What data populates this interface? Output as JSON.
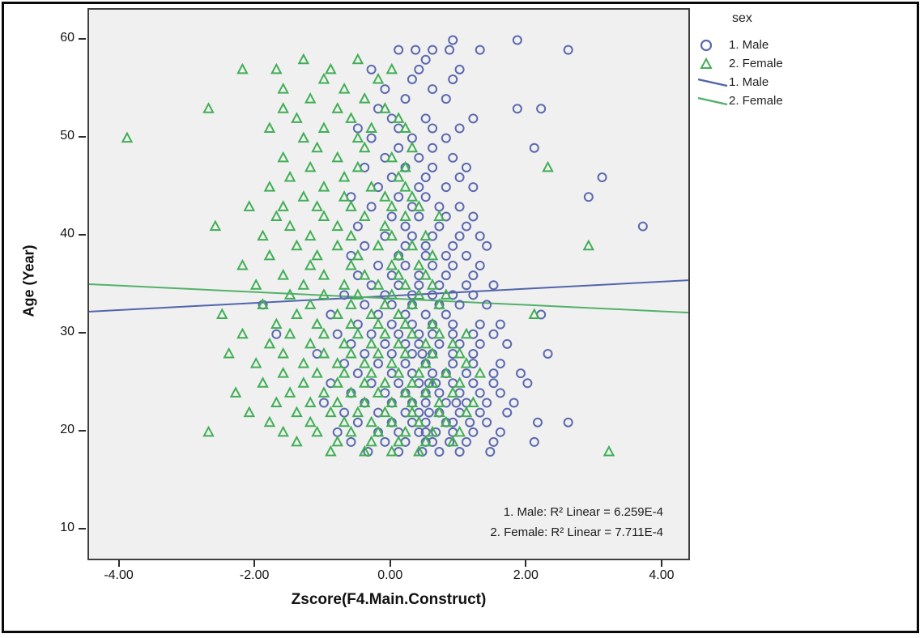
{
  "figure": {
    "x_title": "Zscore(F4.Main.Construct)",
    "y_title": "Age (Year)"
  },
  "legend": {
    "title": "sex",
    "entries": [
      {
        "label": "1. Male",
        "marker": "circle"
      },
      {
        "label": "2. Female",
        "marker": "triangle"
      },
      {
        "label": "1. Male",
        "marker": "line-male"
      },
      {
        "label": "2. Female",
        "marker": "line-female"
      }
    ]
  },
  "annotation": {
    "line1": "1. Male: R² Linear = 6.259E-4",
    "line2": "2. Female: R² Linear = 7.711E-4"
  },
  "colors": {
    "male": "#5b68ae",
    "female": "#41ae55",
    "male_line": "#5265ab",
    "female_line": "#53b168",
    "plot_bg": "#f0f0f1",
    "plot_border": "#3f3f3f",
    "text": "#151515"
  },
  "chart_data": {
    "type": "scatter",
    "title": "",
    "xlabel": "Zscore(F4.Main.Construct)",
    "ylabel": "Age (Year)",
    "xlim": [
      -4.46,
      4.37
    ],
    "ylim": [
      7.1,
      63.1
    ],
    "xticks": [
      -4,
      -2,
      0,
      2,
      4
    ],
    "xtick_labels": [
      "-4.00",
      "-2.00",
      "0.00",
      "2.00",
      "4.00"
    ],
    "yticks": [
      10,
      20,
      30,
      40,
      50,
      60
    ],
    "ytick_labels": [
      "10",
      "20",
      "30",
      "40",
      "50",
      "60"
    ],
    "grid": false,
    "legend_position": "top-right-outside",
    "series": [
      {
        "name": "1. Male",
        "marker": "circle",
        "color": "#5b68ae",
        "points_by_age": {
          "18": [
            -0.35,
            0.1,
            0.45,
            0.7,
            1.0,
            1.45
          ],
          "19": [
            -0.6,
            -0.1,
            0.2,
            0.5,
            0.6,
            0.85,
            1.1,
            1.5,
            2.1
          ],
          "20": [
            -0.8,
            -0.2,
            0.1,
            0.4,
            0.5,
            0.65,
            0.9,
            1.2,
            1.6
          ],
          "21": [
            -0.5,
            0.0,
            0.3,
            0.5,
            0.8,
            0.9,
            1.15,
            1.4,
            2.15,
            2.6
          ],
          "22": [
            -0.7,
            -0.2,
            0.2,
            0.4,
            0.55,
            0.7,
            1.0,
            1.3,
            1.7
          ],
          "23": [
            -1.0,
            -0.4,
            0.0,
            0.3,
            0.5,
            0.8,
            0.95,
            1.1,
            1.4,
            1.8
          ],
          "24": [
            -0.6,
            -0.1,
            0.2,
            0.5,
            0.7,
            1.0,
            1.3,
            1.6
          ],
          "25": [
            -0.9,
            -0.3,
            0.1,
            0.4,
            0.55,
            0.65,
            0.9,
            1.2,
            1.5,
            2.0
          ],
          "26": [
            -0.5,
            0.0,
            0.3,
            0.6,
            0.8,
            1.1,
            1.5,
            1.9
          ],
          "27": [
            -0.7,
            -0.2,
            0.2,
            0.5,
            0.9,
            1.2,
            1.6
          ],
          "28": [
            -1.1,
            -0.4,
            0.0,
            0.3,
            0.45,
            0.6,
            0.9,
            1.2,
            2.3
          ],
          "29": [
            -0.6,
            -0.1,
            0.2,
            0.4,
            0.7,
            1.0,
            1.3,
            1.7
          ],
          "30": [
            -1.7,
            -0.8,
            -0.3,
            0.1,
            0.4,
            0.6,
            0.9,
            1.2,
            1.5
          ],
          "31": [
            -0.5,
            0.0,
            0.3,
            0.6,
            0.9,
            1.3,
            1.6
          ],
          "32": [
            -0.9,
            -0.2,
            0.2,
            0.5,
            0.8,
            2.2
          ],
          "33": [
            -1.9,
            -0.4,
            0.0,
            0.3,
            0.7,
            1.0,
            1.4
          ],
          "34": [
            -0.7,
            -0.1,
            0.3,
            0.6,
            0.9,
            1.2
          ],
          "35": [
            -0.3,
            0.1,
            0.4,
            0.7,
            1.1,
            1.5
          ],
          "36": [
            -0.5,
            0.0,
            0.4,
            0.8,
            1.2
          ],
          "37": [
            -0.2,
            0.2,
            0.6,
            0.9,
            1.3
          ],
          "38": [
            -0.6,
            0.1,
            0.5,
            0.8,
            1.1
          ],
          "39": [
            -0.4,
            0.2,
            0.5,
            0.9,
            1.4
          ],
          "40": [
            -0.1,
            0.3,
            0.6,
            1.0,
            1.3
          ],
          "41": [
            -0.5,
            0.2,
            0.7,
            1.1,
            3.7
          ],
          "42": [
            0.0,
            0.4,
            0.8,
            1.2
          ],
          "43": [
            -0.3,
            0.3,
            0.7,
            1.0
          ],
          "44": [
            -0.6,
            0.1,
            0.5,
            2.9
          ],
          "45": [
            -0.2,
            0.4,
            0.8,
            1.2
          ],
          "46": [
            0.0,
            0.5,
            1.0,
            3.1
          ],
          "47": [
            -0.4,
            0.2,
            0.6,
            1.1
          ],
          "48": [
            -0.1,
            0.4,
            0.9
          ],
          "49": [
            0.1,
            0.6,
            2.1
          ],
          "50": [
            -0.3,
            0.3,
            0.8
          ],
          "51": [
            -0.5,
            0.1,
            0.6,
            1.0
          ],
          "52": [
            0.0,
            0.5,
            1.2
          ],
          "53": [
            -0.2,
            1.85,
            2.2
          ],
          "54": [
            0.2,
            0.8
          ],
          "55": [
            -0.1,
            0.6
          ],
          "56": [
            0.3,
            0.9
          ],
          "57": [
            -0.3,
            0.4,
            1.0
          ],
          "58": [
            0.5
          ],
          "59": [
            0.1,
            0.35,
            0.6,
            0.85,
            1.3,
            2.6
          ],
          "60": [
            0.9,
            1.85
          ]
        }
      },
      {
        "name": "2. Female",
        "marker": "triangle",
        "color": "#41ae55",
        "points_by_age": {
          "18": [
            -0.9,
            -0.4,
            0.0,
            0.4,
            3.2
          ],
          "19": [
            -1.4,
            -0.8,
            -0.3,
            0.1,
            0.5,
            0.9
          ],
          "20": [
            -2.7,
            -1.6,
            -1.1,
            -0.6,
            -0.2,
            0.2,
            0.6,
            1.0
          ],
          "21": [
            -1.8,
            -1.2,
            -0.7,
            -0.3,
            0.0,
            0.4,
            0.8
          ],
          "22": [
            -2.1,
            -1.4,
            -0.9,
            -0.5,
            -0.1,
            0.3,
            0.7,
            1.1
          ],
          "23": [
            -1.7,
            -1.2,
            -0.8,
            -0.4,
            0.0,
            0.3,
            0.7,
            1.2
          ],
          "24": [
            -2.3,
            -1.5,
            -1.0,
            -0.6,
            -0.2,
            0.2,
            0.5,
            0.9
          ],
          "25": [
            -1.9,
            -1.3,
            -0.8,
            -0.4,
            -0.1,
            0.3,
            0.6,
            1.0
          ],
          "26": [
            -1.6,
            -1.1,
            -0.7,
            -0.3,
            0.1,
            0.4,
            0.8,
            1.3
          ],
          "27": [
            -2.0,
            -1.3,
            -0.8,
            -0.4,
            0.0,
            0.5,
            1.1
          ],
          "28": [
            -2.4,
            -1.6,
            -1.0,
            -0.6,
            -0.2,
            0.2,
            0.6,
            1.0
          ],
          "29": [
            -1.8,
            -1.2,
            -0.7,
            -0.3,
            0.1,
            0.5,
            0.9
          ],
          "30": [
            -2.2,
            -1.5,
            -1.0,
            -0.5,
            -0.1,
            0.3,
            0.7,
            1.1
          ],
          "31": [
            -1.7,
            -1.1,
            -0.6,
            -0.2,
            0.2,
            0.6
          ],
          "32": [
            -2.5,
            -1.4,
            -0.8,
            -0.3,
            0.1,
            2.1
          ],
          "33": [
            -1.9,
            -1.2,
            -0.6,
            -0.1,
            0.3,
            0.7
          ],
          "34": [
            -1.5,
            -1.0,
            -0.5,
            0.0,
            0.4,
            0.8
          ],
          "35": [
            -2.0,
            -1.3,
            -0.7,
            -0.2,
            0.2,
            0.6
          ],
          "36": [
            -1.6,
            -1.0,
            -0.4,
            0.1,
            0.5
          ],
          "37": [
            -2.2,
            -1.2,
            -0.6,
            0.0,
            0.4
          ],
          "38": [
            -1.8,
            -1.1,
            -0.5,
            0.1,
            0.6
          ],
          "39": [
            -1.4,
            -0.8,
            -0.2,
            0.3,
            2.9
          ],
          "40": [
            -1.9,
            -1.2,
            -0.6,
            0.0,
            0.5
          ],
          "41": [
            -2.6,
            -1.5,
            -0.8,
            -0.1
          ],
          "42": [
            -1.7,
            -1.0,
            -0.4,
            0.2,
            0.7
          ],
          "43": [
            -2.1,
            -1.6,
            -1.1,
            -0.6,
            0.0,
            0.4
          ],
          "44": [
            -1.3,
            -0.7,
            -0.1,
            0.3
          ],
          "45": [
            -1.8,
            -1.0,
            -0.3,
            0.2
          ],
          "46": [
            -1.5,
            -0.7,
            0.1
          ],
          "47": [
            -1.2,
            -0.5,
            0.2,
            2.3
          ],
          "48": [
            -1.6,
            -0.8,
            0.0
          ],
          "49": [
            -1.1,
            -0.4,
            0.3
          ],
          "50": [
            -3.9,
            -1.3,
            -0.5
          ],
          "51": [
            -1.8,
            -1.0,
            -0.3,
            0.2
          ],
          "52": [
            -1.4,
            -0.6,
            0.1
          ],
          "53": [
            -2.7,
            -1.6,
            -0.8,
            -0.1
          ],
          "54": [
            -1.2,
            -0.4
          ],
          "55": [
            -1.6,
            -0.7
          ],
          "56": [
            -1.0,
            -0.2
          ],
          "57": [
            -2.2,
            -1.7,
            -0.9,
            0.0
          ],
          "58": [
            -1.3,
            -0.5
          ]
        }
      }
    ],
    "fit_lines": [
      {
        "name": "1. Male",
        "color": "#5265ab",
        "endpoints": [
          [
            -4.46,
            32.3
          ],
          [
            4.37,
            35.5
          ]
        ],
        "r2_label": "1. Male: R² Linear = 6.259E-4",
        "r2_value": "6.259E-4"
      },
      {
        "name": "2. Female",
        "color": "#53b168",
        "endpoints": [
          [
            -4.46,
            35.1
          ],
          [
            4.37,
            32.2
          ]
        ],
        "r2_label": "2. Female: R² Linear = 7.711E-4",
        "r2_value": "7.711E-4"
      }
    ]
  }
}
